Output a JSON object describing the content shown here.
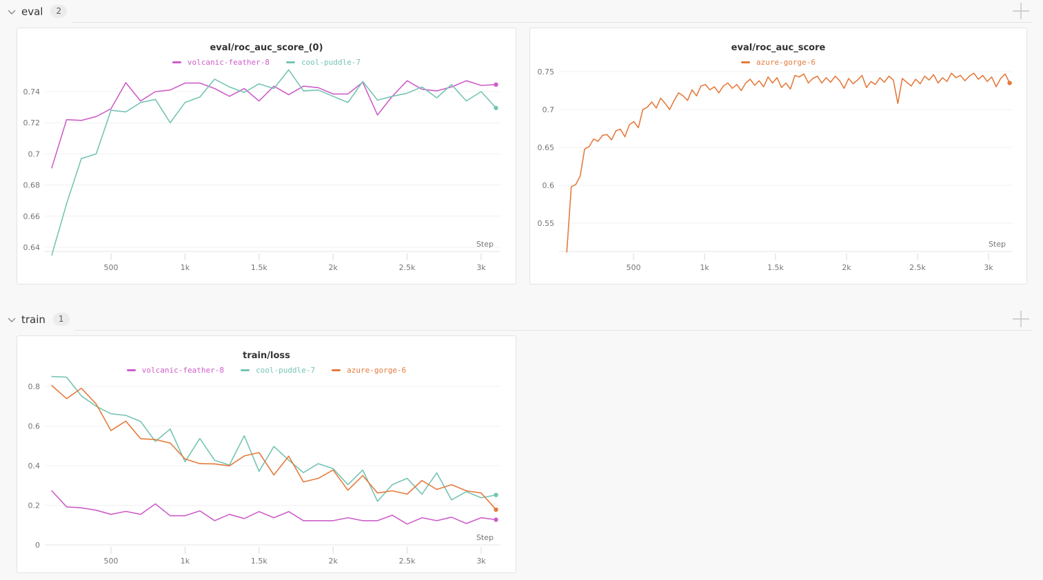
{
  "sections": [
    {
      "name": "eval",
      "count": "2"
    },
    {
      "name": "train",
      "count": "1"
    }
  ],
  "colors": {
    "volcanic_feather_8": "#cd5dca",
    "cool_puddle_7": "#74c4b3",
    "azure_gorge_6": "#e57a3c",
    "panel_bg": "#ffffff",
    "page_bg": "#f8f8f8",
    "grid": "#f0f0f0",
    "axis": "#e4e4e4"
  },
  "chart_data": [
    {
      "type": "line",
      "title": "eval/roc_auc_score_(0)",
      "xlabel": "Step",
      "grid": true,
      "legend_position": "top",
      "x_tick_values": [
        500,
        1000,
        1500,
        2000,
        2500,
        3000
      ],
      "x_tick_labels": [
        "500",
        "1k",
        "1.5k",
        "2k",
        "2.5k",
        "3k"
      ],
      "y_tick_values": [
        0.74,
        0.72,
        0.7,
        0.68,
        0.66,
        0.64
      ],
      "y_tick_labels": [
        "0.74",
        "0.72",
        "0.7",
        "0.68",
        "0.66",
        "0.64"
      ],
      "xlim": [
        100,
        3100
      ],
      "ylim": [
        0.63,
        0.756
      ],
      "series": [
        {
          "name": "volcanic-feather-8",
          "color": "#cd5dca",
          "end_dot": true,
          "steps": [
            100,
            200,
            300,
            400,
            500,
            600,
            700,
            800,
            900,
            1000,
            1100,
            1200,
            1300,
            1400,
            1500,
            1600,
            1700,
            1800,
            1900,
            2000,
            2100,
            2200,
            2300,
            2400,
            2500,
            2600,
            2700,
            2800,
            2900,
            3000,
            3100
          ],
          "values": [
            0.691,
            0.722,
            0.7215,
            0.724,
            0.729,
            0.7457,
            0.734,
            0.74,
            0.741,
            0.7455,
            0.7455,
            0.742,
            0.737,
            0.742,
            0.734,
            0.7435,
            0.738,
            0.7435,
            0.7425,
            0.7385,
            0.7385,
            0.746,
            0.725,
            0.737,
            0.747,
            0.7415,
            0.7405,
            0.743,
            0.747,
            0.744,
            0.7445
          ]
        },
        {
          "name": "cool-puddle-7",
          "color": "#74c4b3",
          "end_dot": true,
          "steps": [
            100,
            200,
            300,
            400,
            500,
            600,
            700,
            800,
            900,
            1000,
            1100,
            1200,
            1300,
            1400,
            1500,
            1600,
            1700,
            1800,
            1900,
            2000,
            2100,
            2200,
            2300,
            2400,
            2500,
            2600,
            2700,
            2800,
            2900,
            3000,
            3100
          ],
          "values": [
            0.635,
            0.668,
            0.697,
            0.7,
            0.728,
            0.727,
            0.733,
            0.735,
            0.72,
            0.733,
            0.7365,
            0.748,
            0.743,
            0.7395,
            0.745,
            0.742,
            0.754,
            0.7405,
            0.741,
            0.737,
            0.733,
            0.7465,
            0.7345,
            0.737,
            0.739,
            0.743,
            0.736,
            0.7445,
            0.734,
            0.74,
            0.7295
          ]
        }
      ]
    },
    {
      "type": "line",
      "title": "eval/roc_auc_score",
      "xlabel": "Step",
      "grid": true,
      "legend_position": "top",
      "x_tick_values": [
        500,
        1000,
        1500,
        2000,
        2500,
        3000
      ],
      "x_tick_labels": [
        "500",
        "1k",
        "1.5k",
        "2k",
        "2.5k",
        "3k"
      ],
      "y_tick_values": [
        0.75,
        0.7,
        0.65,
        0.6,
        0.55
      ],
      "y_tick_labels": [
        "0.75",
        "0.7",
        "0.65",
        "0.6",
        "0.55"
      ],
      "xlim": [
        30,
        3150
      ],
      "ylim": [
        0.505,
        0.755
      ],
      "series": [
        {
          "name": "azure-gorge-6",
          "color": "#e57a3c",
          "end_dot": true,
          "x0": 30,
          "dx": 31.5,
          "values": [
            0.512,
            0.598,
            0.601,
            0.612,
            0.648,
            0.651,
            0.661,
            0.658,
            0.666,
            0.667,
            0.66,
            0.672,
            0.674,
            0.664,
            0.68,
            0.684,
            0.676,
            0.7,
            0.703,
            0.71,
            0.702,
            0.715,
            0.708,
            0.7,
            0.712,
            0.722,
            0.718,
            0.712,
            0.726,
            0.718,
            0.731,
            0.733,
            0.726,
            0.73,
            0.722,
            0.731,
            0.735,
            0.728,
            0.733,
            0.725,
            0.735,
            0.74,
            0.732,
            0.738,
            0.73,
            0.743,
            0.735,
            0.742,
            0.729,
            0.735,
            0.727,
            0.745,
            0.743,
            0.747,
            0.735,
            0.741,
            0.744,
            0.735,
            0.742,
            0.736,
            0.744,
            0.738,
            0.728,
            0.741,
            0.734,
            0.739,
            0.745,
            0.729,
            0.737,
            0.733,
            0.742,
            0.736,
            0.744,
            0.739,
            0.708,
            0.741,
            0.736,
            0.731,
            0.74,
            0.734,
            0.744,
            0.739,
            0.746,
            0.735,
            0.742,
            0.737,
            0.748,
            0.742,
            0.745,
            0.738,
            0.744,
            0.748,
            0.74,
            0.745,
            0.737,
            0.743,
            0.73,
            0.741,
            0.747,
            0.735
          ]
        }
      ]
    },
    {
      "type": "line",
      "title": "train/loss",
      "xlabel": "Step",
      "grid": true,
      "legend_position": "top",
      "x_tick_values": [
        500,
        1000,
        1500,
        2000,
        2500,
        3000
      ],
      "x_tick_labels": [
        "500",
        "1k",
        "1.5k",
        "2k",
        "2.5k",
        "3k"
      ],
      "y_tick_values": [
        0.8,
        0.6,
        0.4,
        0.2,
        0
      ],
      "y_tick_labels": [
        "0.8",
        "0.6",
        "0.4",
        "0.2",
        "0"
      ],
      "xlim": [
        100,
        3100
      ],
      "ylim": [
        0,
        0.88
      ],
      "series": [
        {
          "name": "volcanic-feather-8",
          "color": "#cd5dca",
          "end_dot": true,
          "steps": [
            100,
            200,
            300,
            400,
            500,
            600,
            700,
            800,
            900,
            1000,
            1100,
            1200,
            1300,
            1400,
            1500,
            1600,
            1700,
            1800,
            1900,
            2000,
            2100,
            2200,
            2300,
            2400,
            2500,
            2600,
            2700,
            2800,
            2900,
            3000,
            3100
          ],
          "values": [
            0.273,
            0.192,
            0.187,
            0.175,
            0.154,
            0.169,
            0.154,
            0.207,
            0.147,
            0.147,
            0.172,
            0.122,
            0.154,
            0.133,
            0.168,
            0.137,
            0.168,
            0.122,
            0.122,
            0.122,
            0.137,
            0.122,
            0.122,
            0.15,
            0.105,
            0.137,
            0.122,
            0.14,
            0.108,
            0.137,
            0.127
          ]
        },
        {
          "name": "cool-puddle-7",
          "color": "#74c4b3",
          "end_dot": true,
          "steps": [
            100,
            200,
            300,
            400,
            500,
            600,
            700,
            800,
            900,
            1000,
            1100,
            1200,
            1300,
            1400,
            1500,
            1600,
            1700,
            1800,
            1900,
            2000,
            2100,
            2200,
            2300,
            2400,
            2500,
            2600,
            2700,
            2800,
            2900,
            3000,
            3100
          ],
          "values": [
            0.85,
            0.847,
            0.752,
            0.7,
            0.662,
            0.654,
            0.623,
            0.522,
            0.585,
            0.42,
            0.537,
            0.427,
            0.403,
            0.551,
            0.371,
            0.497,
            0.428,
            0.365,
            0.41,
            0.385,
            0.304,
            0.378,
            0.22,
            0.304,
            0.336,
            0.256,
            0.364,
            0.227,
            0.269,
            0.238,
            0.252
          ]
        },
        {
          "name": "azure-gorge-6",
          "color": "#e57a3c",
          "end_dot": true,
          "steps": [
            100,
            200,
            300,
            400,
            500,
            600,
            700,
            800,
            900,
            1000,
            1100,
            1200,
            1300,
            1400,
            1500,
            1600,
            1700,
            1800,
            1900,
            2000,
            2100,
            2200,
            2300,
            2400,
            2500,
            2600,
            2700,
            2800,
            2900,
            3000,
            3100
          ],
          "values": [
            0.805,
            0.738,
            0.791,
            0.711,
            0.577,
            0.625,
            0.536,
            0.532,
            0.514,
            0.434,
            0.41,
            0.409,
            0.399,
            0.449,
            0.466,
            0.353,
            0.448,
            0.318,
            0.336,
            0.378,
            0.276,
            0.35,
            0.262,
            0.273,
            0.256,
            0.325,
            0.28,
            0.304,
            0.273,
            0.262,
            0.178
          ]
        }
      ]
    }
  ]
}
